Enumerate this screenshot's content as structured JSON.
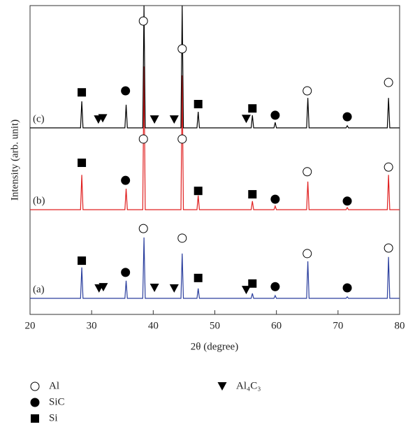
{
  "chart_data": {
    "type": "line",
    "xlabel": "2θ (degree)",
    "ylabel": "Intensity (arb. unit)",
    "xlim": [
      20,
      80
    ],
    "xticks": [
      20,
      30,
      40,
      50,
      60,
      70,
      80
    ],
    "ylim": [
      0,
      100
    ],
    "x": [
      20,
      28.2,
      28.4,
      28.6,
      35.4,
      35.6,
      35.8,
      38.3,
      38.5,
      38.7,
      44.5,
      44.7,
      44.9,
      47.1,
      47.3,
      47.5,
      55.9,
      56.1,
      56.3,
      59.6,
      59.8,
      60.0,
      64.9,
      65.1,
      65.3,
      71.3,
      71.5,
      71.7,
      78.0,
      78.2,
      78.4,
      80
    ],
    "series": [
      {
        "name": "(a)",
        "color": "#2b3f9e",
        "values": [
          5.2,
          5.2,
          15.2,
          5.2,
          5.2,
          10.9,
          5.2,
          5.2,
          24.9,
          5.2,
          5.2,
          19.7,
          5.2,
          5.2,
          8.4,
          5.2,
          5.2,
          6.8,
          5.2,
          5.2,
          6.1,
          5.2,
          5.2,
          17.2,
          5.2,
          5.2,
          5.7,
          5.2,
          5.2,
          18.6,
          5.2,
          5.2
        ]
      },
      {
        "name": "(b)",
        "color": "#e02020",
        "values": [
          33.9,
          33.9,
          45.2,
          33.9,
          33.9,
          40.7,
          33.9,
          33.9,
          80.3,
          33.9,
          33.9,
          77.4,
          33.9,
          33.9,
          38.5,
          33.9,
          33.9,
          36.7,
          33.9,
          33.9,
          35.1,
          33.9,
          33.9,
          43,
          33.9,
          33.9,
          34.6,
          33.9,
          33.9,
          45.2,
          33.9,
          33.9
        ]
      },
      {
        "name": "(c)",
        "color": "#000000",
        "values": [
          60.4,
          60.4,
          69,
          60.4,
          60.4,
          67.9,
          60.4,
          60.4,
          100,
          60.4,
          60.4,
          100,
          60.4,
          60.4,
          65.6,
          60.4,
          60.4,
          64.5,
          60.4,
          60.4,
          62.2,
          60.4,
          60.4,
          70.1,
          60.4,
          60.4,
          61.1,
          60.4,
          60.4,
          70.1,
          60.4,
          60.4
        ]
      }
    ],
    "phases": [
      {
        "name": "Al",
        "symbol": "open-circle"
      },
      {
        "name": "SiC",
        "symbol": "filled-circle"
      },
      {
        "name": "Si",
        "symbol": "square"
      },
      {
        "name": "Al₄C₃",
        "symbol": "triangle-down"
      }
    ],
    "markers": [
      {
        "phase": 2,
        "x": 28.4,
        "y": 71.9
      },
      {
        "phase": 3,
        "x": 31.1,
        "y": 63.1
      },
      {
        "phase": 3,
        "x": 31.8,
        "y": 63.5
      },
      {
        "phase": 1,
        "x": 35.5,
        "y": 72.4
      },
      {
        "phase": 0,
        "x": 38.4,
        "y": 95
      },
      {
        "phase": 3,
        "x": 40.2,
        "y": 63.1
      },
      {
        "phase": 3,
        "x": 43.4,
        "y": 63.1
      },
      {
        "phase": 0,
        "x": 44.7,
        "y": 86
      },
      {
        "phase": 2,
        "x": 47.3,
        "y": 68.1
      },
      {
        "phase": 3,
        "x": 55.1,
        "y": 63.3
      },
      {
        "phase": 2,
        "x": 56.1,
        "y": 66.7
      },
      {
        "phase": 1,
        "x": 59.8,
        "y": 64.5
      },
      {
        "phase": 0,
        "x": 65.0,
        "y": 72.4
      },
      {
        "phase": 1,
        "x": 71.5,
        "y": 64
      },
      {
        "phase": 0,
        "x": 78.2,
        "y": 75.1
      },
      {
        "phase": 2,
        "x": 28.4,
        "y": 49.1
      },
      {
        "phase": 1,
        "x": 35.5,
        "y": 43.4
      },
      {
        "phase": 0,
        "x": 38.4,
        "y": 56.8
      },
      {
        "phase": 0,
        "x": 44.7,
        "y": 56.8
      },
      {
        "phase": 2,
        "x": 47.3,
        "y": 40
      },
      {
        "phase": 2,
        "x": 56.1,
        "y": 38.9
      },
      {
        "phase": 1,
        "x": 59.8,
        "y": 37.3
      },
      {
        "phase": 0,
        "x": 65.0,
        "y": 46.2
      },
      {
        "phase": 1,
        "x": 71.5,
        "y": 36.7
      },
      {
        "phase": 0,
        "x": 78.2,
        "y": 47.7
      },
      {
        "phase": 2,
        "x": 28.4,
        "y": 17.4
      },
      {
        "phase": 3,
        "x": 31.2,
        "y": 8.4
      },
      {
        "phase": 3,
        "x": 31.9,
        "y": 8.8
      },
      {
        "phase": 1,
        "x": 35.5,
        "y": 13.6
      },
      {
        "phase": 0,
        "x": 38.4,
        "y": 27.8
      },
      {
        "phase": 3,
        "x": 40.2,
        "y": 8.6
      },
      {
        "phase": 3,
        "x": 43.4,
        "y": 8.4
      },
      {
        "phase": 0,
        "x": 44.7,
        "y": 24.7
      },
      {
        "phase": 2,
        "x": 47.3,
        "y": 11.8
      },
      {
        "phase": 3,
        "x": 55.1,
        "y": 7.9
      },
      {
        "phase": 2,
        "x": 56.1,
        "y": 10
      },
      {
        "phase": 1,
        "x": 59.8,
        "y": 9
      },
      {
        "phase": 0,
        "x": 65.0,
        "y": 19.7
      },
      {
        "phase": 1,
        "x": 71.5,
        "y": 8.6
      },
      {
        "phase": 0,
        "x": 78.2,
        "y": 21.5
      }
    ]
  }
}
